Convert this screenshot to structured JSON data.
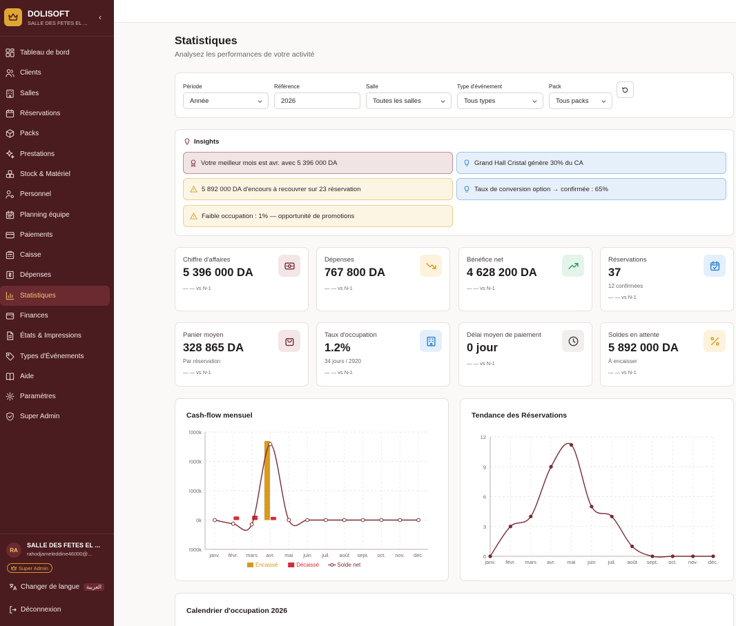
{
  "brand": {
    "name": "DOLISOFT",
    "subtitle": "SALLE DES FETES EL ..."
  },
  "sidebar": {
    "items": [
      {
        "label": "Tableau de bord",
        "icon": "dashboard-icon"
      },
      {
        "label": "Clients",
        "icon": "users-icon"
      },
      {
        "label": "Salles",
        "icon": "building-icon"
      },
      {
        "label": "Réservations",
        "icon": "calendar-icon"
      },
      {
        "label": "Packs",
        "icon": "package-icon"
      },
      {
        "label": "Prestations",
        "icon": "sparkles-icon"
      },
      {
        "label": "Stock & Matériel",
        "icon": "boxes-icon"
      },
      {
        "label": "Personnel",
        "icon": "user-cog-icon"
      },
      {
        "label": "Planning équipe",
        "icon": "calendar-team-icon"
      },
      {
        "label": "Paiements",
        "icon": "credit-card-icon"
      },
      {
        "label": "Caisse",
        "icon": "cash-register-icon"
      },
      {
        "label": "Dépenses",
        "icon": "receipt-icon"
      },
      {
        "label": "Statistiques",
        "icon": "bar-chart-icon",
        "active": true
      },
      {
        "label": "Finances",
        "icon": "wallet-icon"
      },
      {
        "label": "États & Impressions",
        "icon": "file-text-icon"
      },
      {
        "label": "Types d'Événements",
        "icon": "tag-icon"
      },
      {
        "label": "Aide",
        "icon": "book-icon"
      },
      {
        "label": "Paramètres",
        "icon": "settings-icon"
      },
      {
        "label": "Super Admin",
        "icon": "shield-icon"
      }
    ],
    "user": {
      "initials": "RA",
      "name": "SALLE DES FETES EL ...",
      "email": "rahodjameleddine46000@...",
      "role": "Super Admin"
    },
    "language": {
      "label": "Changer de langue",
      "badge": "العربية"
    },
    "logout": "Déconnexion"
  },
  "page": {
    "title": "Statistiques",
    "subtitle": "Analysez les performances de votre activité"
  },
  "filters": [
    {
      "label": "Période",
      "value": "Année",
      "dropdown": true
    },
    {
      "label": "Référence",
      "value": "2026",
      "dropdown": false
    },
    {
      "label": "Salle",
      "value": "Toutes les salles",
      "dropdown": true
    },
    {
      "label": "Type d'événement",
      "value": "Tous types",
      "dropdown": true
    },
    {
      "label": "Pack",
      "value": "Tous packs",
      "dropdown": true
    }
  ],
  "insights": {
    "title": "Insights",
    "items": [
      {
        "text": "Votre meilleur mois est avr. avec 5 396 000 DA",
        "tone": "red",
        "icon": "award-icon"
      },
      {
        "text": "Grand Hall Cristal génère 30% du CA",
        "tone": "blue",
        "icon": "lightbulb-icon"
      },
      {
        "text": "5 892 000 DA d'encours à recouvrer sur 23 réservation",
        "tone": "amber",
        "icon": "warning-icon"
      },
      {
        "text": "Taux de conversion option → confirmée : 65%",
        "tone": "blue",
        "icon": "lightbulb-icon"
      },
      {
        "text": "Faible occupation : 1% — opportunité de promotions",
        "tone": "amber",
        "icon": "warning-icon"
      }
    ]
  },
  "kpis": [
    {
      "label": "Chiffre d'affaires",
      "value": "5 396 000 DA",
      "sub": "",
      "cmp": "— — vs N-1",
      "icon": "banknote-icon",
      "accent": "#7a2a33",
      "bg": "#f3e6e7"
    },
    {
      "label": "Dépenses",
      "value": "767 800 DA",
      "sub": "",
      "cmp": "— — vs N-1",
      "icon": "trending-down-icon",
      "accent": "#d99a1f",
      "bg": "#fdf2dc"
    },
    {
      "label": "Bénéfice net",
      "value": "4 628 200 DA",
      "sub": "",
      "cmp": "— — vs N-1",
      "icon": "trending-up-icon",
      "accent": "#2f9a5e",
      "bg": "#e3f4ea"
    },
    {
      "label": "Réservations",
      "value": "37",
      "sub": "12 confirmées",
      "cmp": "— — vs N-1",
      "icon": "calendar-check-icon",
      "accent": "#2b7fd0",
      "bg": "#e3effb"
    },
    {
      "label": "Panier moyen",
      "value": "328 865 DA",
      "sub": "Par réservation",
      "cmp": "— — vs N-1",
      "icon": "shopping-bag-icon",
      "accent": "#7a2a33",
      "bg": "#f3e6e7"
    },
    {
      "label": "Taux d'occupation",
      "value": "1.2%",
      "sub": "34 jours / 2920",
      "cmp": "— — vs N-1",
      "icon": "building-icon",
      "accent": "#2b7fd0",
      "bg": "#e3effb"
    },
    {
      "label": "Délai moyen de paiement",
      "value": "0 jour",
      "sub": "",
      "cmp": "— — vs N-1",
      "icon": "clock-icon",
      "accent": "#4a3f41",
      "bg": "#f1eeee"
    },
    {
      "label": "Soldes en attente",
      "value": "5 892 000 DA",
      "sub": "À encaisser",
      "cmp": "— — vs N-1",
      "icon": "percent-icon",
      "accent": "#d99a1f",
      "bg": "#fdf2dc"
    }
  ],
  "chart_data": [
    {
      "type": "bar",
      "title": "Cash-flow mensuel",
      "categories": [
        "janv.",
        "févr.",
        "mars",
        "avr.",
        "mai",
        "juin",
        "juil.",
        "août",
        "sept.",
        "oct.",
        "nov.",
        "déc."
      ],
      "y_ticks": [
        "!000k",
        "!000k",
        "!000k",
        "0k",
        "!000k"
      ],
      "ylim": [
        -2000,
        6000
      ],
      "series": [
        {
          "name": "Encaissé",
          "type": "bar",
          "color": "#d99a1f",
          "values": [
            0,
            0,
            0,
            5396,
            0,
            0,
            0,
            0,
            0,
            0,
            0,
            0
          ]
        },
        {
          "name": "Décaissé",
          "type": "bar",
          "color": "#d62b36",
          "values": [
            0,
            250,
            300,
            220,
            0,
            0,
            0,
            0,
            0,
            0,
            0,
            0
          ]
        },
        {
          "name": "Solde net",
          "type": "line",
          "color": "#7a2a33",
          "values": [
            0,
            -250,
            -300,
            5176,
            0,
            0,
            0,
            0,
            0,
            0,
            0,
            0
          ]
        }
      ],
      "legend_position": "bottom"
    },
    {
      "type": "line",
      "title": "Tendance des Réservations",
      "categories": [
        "janv.",
        "févr.",
        "mars",
        "avr.",
        "mai",
        "juin",
        "juil.",
        "août",
        "sept.",
        "oct.",
        "nov.",
        "déc."
      ],
      "ylim": [
        0,
        12
      ],
      "y_ticks": [
        0,
        3,
        6,
        9,
        12
      ],
      "series": [
        {
          "values": [
            0,
            3,
            4,
            9,
            11.2,
            5,
            4,
            1,
            0,
            0,
            0,
            0
          ],
          "color": "#7a2a33"
        }
      ]
    }
  ],
  "calendar": {
    "title": "Calendrier d'occupation 2026"
  }
}
